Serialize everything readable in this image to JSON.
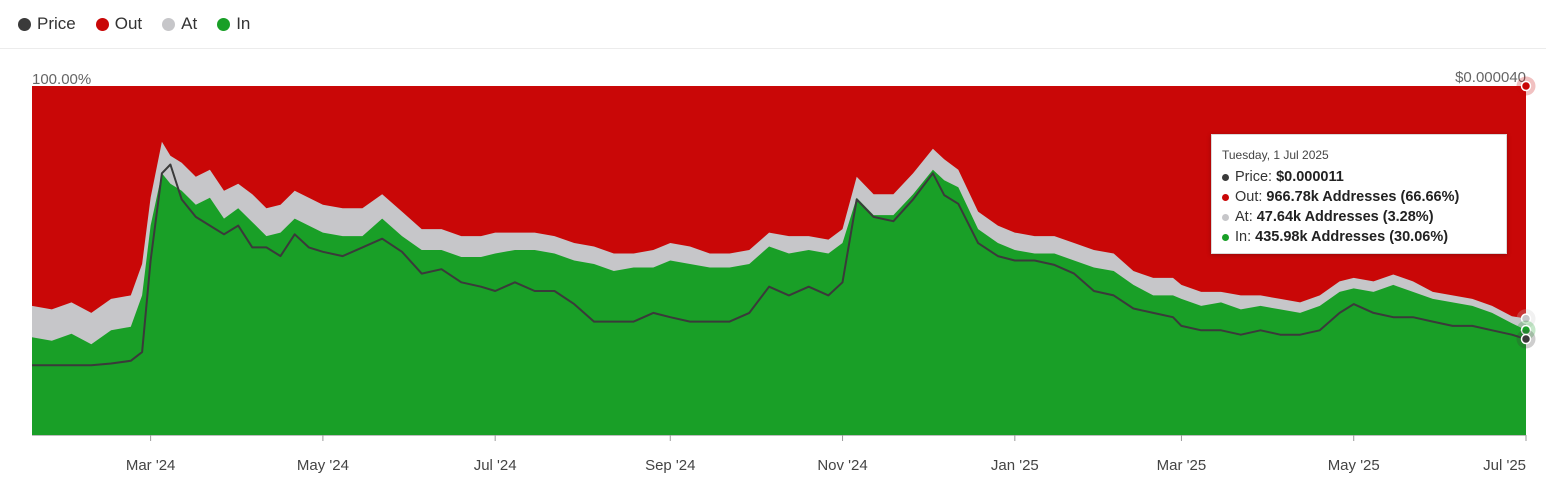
{
  "legend": {
    "items": [
      {
        "label": "Price",
        "color": "#3a3a3a"
      },
      {
        "label": "Out",
        "color": "#c90707"
      },
      {
        "label": "At",
        "color": "#c6c6c9"
      },
      {
        "label": "In",
        "color": "#199f27"
      }
    ]
  },
  "tooltip": {
    "date": "Tuesday, 1 Jul 2025",
    "rows": [
      {
        "label": "Price:",
        "value": "$0.000011",
        "color": "#3a3a3a"
      },
      {
        "label": "Out:",
        "value": "966.78k Addresses (66.66%)",
        "color": "#c90707"
      },
      {
        "label": "At:",
        "value": "47.64k Addresses (3.28%)",
        "color": "#c6c6c9"
      },
      {
        "label": "In:",
        "value": "435.98k Addresses (30.06%)",
        "color": "#199f27"
      }
    ]
  },
  "chart_data": {
    "type": "area",
    "y_left_label": "100.00%",
    "y_right_label": "$0.000040",
    "ylim_percent": [
      0,
      100
    ],
    "ylim_price": [
      0,
      4e-05
    ],
    "x_tick_labels": [
      "Mar '24",
      "May '24",
      "Jul '24",
      "Sep '24",
      "Nov '24",
      "Jan '25",
      "Mar '25",
      "May '25",
      "Jul '25"
    ],
    "x_ticks": [
      "2024-03-01",
      "2024-05-01",
      "2024-07-01",
      "2024-09-01",
      "2024-11-01",
      "2025-01-01",
      "2025-03-01",
      "2025-05-01",
      "2025-07-01"
    ],
    "x": [
      "2024-01-19",
      "2024-01-26",
      "2024-02-02",
      "2024-02-09",
      "2024-02-16",
      "2024-02-23",
      "2024-02-27",
      "2024-03-01",
      "2024-03-05",
      "2024-03-08",
      "2024-03-12",
      "2024-03-17",
      "2024-03-22",
      "2024-03-27",
      "2024-04-01",
      "2024-04-06",
      "2024-04-11",
      "2024-04-16",
      "2024-04-21",
      "2024-04-26",
      "2024-05-01",
      "2024-05-08",
      "2024-05-15",
      "2024-05-22",
      "2024-05-29",
      "2024-06-05",
      "2024-06-12",
      "2024-06-19",
      "2024-06-26",
      "2024-07-01",
      "2024-07-08",
      "2024-07-15",
      "2024-07-22",
      "2024-07-29",
      "2024-08-05",
      "2024-08-12",
      "2024-08-19",
      "2024-08-26",
      "2024-09-01",
      "2024-09-08",
      "2024-09-15",
      "2024-09-22",
      "2024-09-29",
      "2024-10-06",
      "2024-10-13",
      "2024-10-20",
      "2024-10-27",
      "2024-11-01",
      "2024-11-06",
      "2024-11-12",
      "2024-11-19",
      "2024-11-26",
      "2024-12-03",
      "2024-12-07",
      "2024-12-12",
      "2024-12-19",
      "2024-12-26",
      "2025-01-01",
      "2025-01-08",
      "2025-01-15",
      "2025-01-22",
      "2025-01-29",
      "2025-02-05",
      "2025-02-12",
      "2025-02-19",
      "2025-02-26",
      "2025-03-01",
      "2025-03-08",
      "2025-03-15",
      "2025-03-22",
      "2025-03-29",
      "2025-04-05",
      "2025-04-12",
      "2025-04-19",
      "2025-04-26",
      "2025-05-01",
      "2025-05-08",
      "2025-05-15",
      "2025-05-22",
      "2025-05-29",
      "2025-06-05",
      "2025-06-12",
      "2025-06-19",
      "2025-06-26",
      "2025-07-01"
    ],
    "series": [
      {
        "name": "In",
        "color": "#199f27",
        "unit": "percent",
        "values": [
          28,
          27,
          29,
          26,
          30,
          31,
          40,
          60,
          75,
          72,
          70,
          66,
          68,
          62,
          65,
          61,
          57,
          58,
          62,
          60,
          58,
          57,
          57,
          62,
          57,
          53,
          53,
          51,
          51,
          52,
          53,
          53,
          52,
          50,
          49,
          47,
          48,
          48,
          50,
          49,
          48,
          48,
          49,
          54,
          52,
          53,
          52,
          55,
          68,
          63,
          63,
          69,
          76,
          73,
          71,
          59,
          55,
          53,
          52,
          52,
          50,
          48,
          47,
          43,
          40,
          40,
          39,
          37,
          38,
          36,
          37,
          36,
          35,
          37,
          41,
          42,
          41,
          43,
          41,
          39,
          38,
          37,
          35,
          32,
          30.06
        ]
      },
      {
        "name": "At",
        "color": "#c6c6c9",
        "unit": "percent",
        "values": [
          37,
          36,
          38,
          35,
          39,
          40,
          49,
          68,
          84,
          80,
          78,
          74,
          76,
          70,
          72,
          69,
          65,
          66,
          70,
          68,
          66,
          65,
          65,
          69,
          64,
          59,
          59,
          57,
          57,
          58,
          58,
          58,
          57,
          55,
          54,
          52,
          52,
          53,
          55,
          54,
          52,
          52,
          53,
          58,
          57,
          57,
          56,
          59,
          74,
          69,
          69,
          75,
          82,
          79,
          76,
          64,
          60,
          58,
          57,
          57,
          55,
          53,
          52,
          47,
          45,
          45,
          43,
          41,
          41,
          40,
          40,
          39,
          38,
          40,
          44,
          45,
          44,
          46,
          44,
          41,
          40,
          39,
          37,
          34,
          33.34
        ]
      },
      {
        "name": "Price",
        "color": "#3a3a3a",
        "unit": "USD",
        "values": [
          8e-06,
          8e-06,
          8e-06,
          8e-06,
          8.2e-06,
          8.5e-06,
          9.5e-06,
          2e-05,
          3e-05,
          3.1e-05,
          2.7e-05,
          2.5e-05,
          2.4e-05,
          2.3e-05,
          2.4e-05,
          2.15e-05,
          2.15e-05,
          2.05e-05,
          2.3e-05,
          2.15e-05,
          2.1e-05,
          2.05e-05,
          2.15e-05,
          2.25e-05,
          2.1e-05,
          1.85e-05,
          1.9e-05,
          1.75e-05,
          1.7e-05,
          1.65e-05,
          1.75e-05,
          1.65e-05,
          1.65e-05,
          1.5e-05,
          1.3e-05,
          1.3e-05,
          1.3e-05,
          1.4e-05,
          1.35e-05,
          1.3e-05,
          1.3e-05,
          1.3e-05,
          1.4e-05,
          1.7e-05,
          1.6e-05,
          1.7e-05,
          1.6e-05,
          1.75e-05,
          2.7e-05,
          2.5e-05,
          2.45e-05,
          2.7e-05,
          3e-05,
          2.75e-05,
          2.65e-05,
          2.2e-05,
          2.05e-05,
          2e-05,
          2e-05,
          1.95e-05,
          1.85e-05,
          1.65e-05,
          1.6e-05,
          1.45e-05,
          1.4e-05,
          1.35e-05,
          1.25e-05,
          1.2e-05,
          1.2e-05,
          1.15e-05,
          1.2e-05,
          1.15e-05,
          1.15e-05,
          1.2e-05,
          1.4e-05,
          1.5e-05,
          1.4e-05,
          1.35e-05,
          1.35e-05,
          1.3e-05,
          1.25e-05,
          1.25e-05,
          1.2e-05,
          1.15e-05,
          1.1e-05
        ]
      }
    ],
    "out_color": "#c90707",
    "grid": false,
    "legend_position": "top-left"
  }
}
